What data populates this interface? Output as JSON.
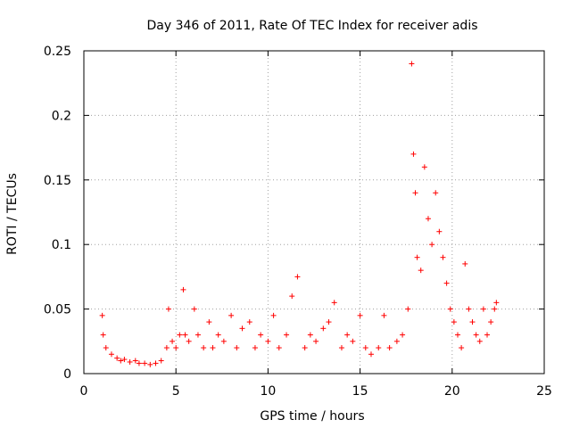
{
  "chart_data": {
    "type": "scatter",
    "title": "Day 346 of 2011, Rate Of TEC Index for receiver adis",
    "xlabel": "GPS time / hours",
    "ylabel": "ROTI / TECUs",
    "xlim": [
      0,
      25
    ],
    "ylim": [
      0,
      0.25
    ],
    "x_ticks": [
      "0",
      "5",
      "10",
      "15",
      "20",
      "25"
    ],
    "y_ticks": [
      "0",
      "0.05",
      "0.1",
      "0.15",
      "0.2",
      "0.25"
    ],
    "grid": true,
    "legend": "none",
    "marker": "plus",
    "color": "#ff0000",
    "series": [
      {
        "x": [
          1.0,
          1.05,
          1.2,
          1.5,
          1.8,
          2.0,
          2.2,
          2.5,
          2.8,
          3.0,
          3.3,
          3.6,
          3.9,
          4.2,
          4.5,
          4.6,
          4.8,
          5.0,
          5.2,
          5.4,
          5.5,
          5.7,
          6.0,
          6.2,
          6.5,
          6.8,
          7.0,
          7.3,
          7.6,
          8.0,
          8.3,
          8.6,
          9.0,
          9.3,
          9.6,
          10.0,
          10.3,
          10.6,
          11.0,
          11.3,
          11.6,
          12.0,
          12.3,
          12.6,
          13.0,
          13.3,
          13.6,
          14.0,
          14.3,
          14.6,
          15.0,
          15.3,
          15.6,
          16.0,
          16.3,
          16.6,
          17.0,
          17.3,
          17.6,
          17.8,
          17.9,
          18.0,
          18.1,
          18.3,
          18.5,
          18.7,
          18.9,
          19.1,
          19.3,
          19.5,
          19.7,
          19.9,
          20.1,
          20.3,
          20.5,
          20.7,
          20.9,
          21.1,
          21.3,
          21.5,
          21.7,
          21.9,
          22.1,
          22.3,
          22.4
        ],
        "y": [
          0.045,
          0.03,
          0.02,
          0.015,
          0.012,
          0.01,
          0.011,
          0.009,
          0.01,
          0.008,
          0.008,
          0.007,
          0.008,
          0.01,
          0.02,
          0.05,
          0.025,
          0.02,
          0.03,
          0.065,
          0.03,
          0.025,
          0.05,
          0.03,
          0.02,
          0.04,
          0.02,
          0.03,
          0.025,
          0.045,
          0.02,
          0.035,
          0.04,
          0.02,
          0.03,
          0.025,
          0.045,
          0.02,
          0.03,
          0.06,
          0.075,
          0.02,
          0.03,
          0.025,
          0.035,
          0.04,
          0.055,
          0.02,
          0.03,
          0.025,
          0.045,
          0.02,
          0.015,
          0.02,
          0.045,
          0.02,
          0.025,
          0.03,
          0.05,
          0.24,
          0.17,
          0.14,
          0.09,
          0.08,
          0.16,
          0.12,
          0.1,
          0.14,
          0.11,
          0.09,
          0.07,
          0.05,
          0.04,
          0.03,
          0.02,
          0.085,
          0.05,
          0.04,
          0.03,
          0.025,
          0.05,
          0.03,
          0.04,
          0.05,
          0.055
        ]
      }
    ]
  }
}
